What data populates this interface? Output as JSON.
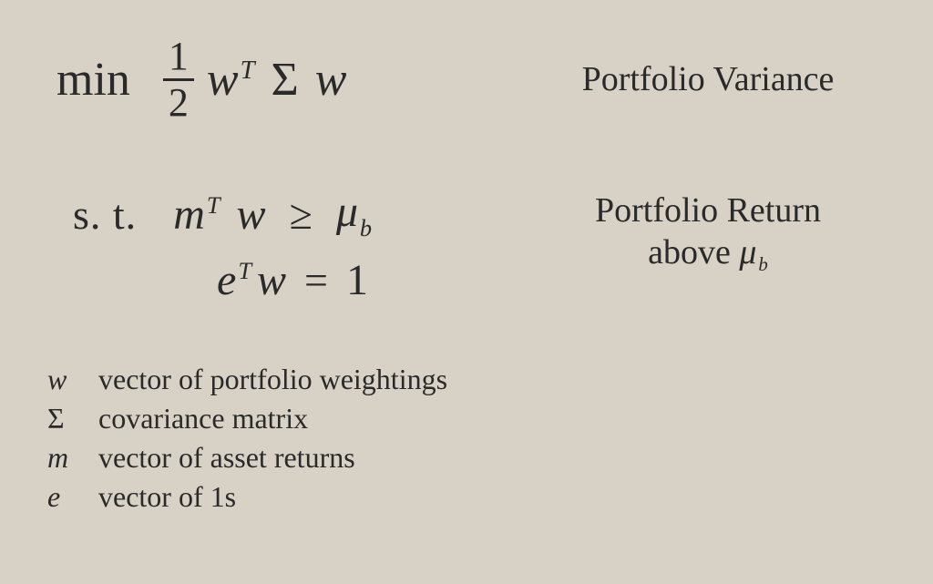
{
  "background_color": "#d8d1c5",
  "text_color": "#2a2a2a",
  "font_family": "Georgia, Times New Roman, serif",
  "objective": {
    "op": "min",
    "frac_num": "1",
    "frac_den": "2",
    "w1": "w",
    "T": "T",
    "Sigma": "Σ",
    "w2": "w",
    "label": "Portfolio Variance",
    "fontsize_math": 52,
    "fontsize_label": 38
  },
  "constraints": {
    "st": "s. t.",
    "line1": {
      "m": "m",
      "T": "T",
      "w": "w",
      "rel": "≥",
      "mu": "μ",
      "sub": "b"
    },
    "line2": {
      "e": "e",
      "T": "T",
      "w": "w",
      "rel": "=",
      "one": "1"
    },
    "label_line1": "Portfolio Return",
    "label_line2_prefix": "above ",
    "label_mu": "μ",
    "label_sub": "b",
    "fontsize_math": 48,
    "fontsize_label": 38
  },
  "legend": {
    "fontsize": 32,
    "items": [
      {
        "sym": "w",
        "italic": true,
        "text": "vector of portfolio weightings"
      },
      {
        "sym": "Σ",
        "italic": false,
        "text": "covariance matrix"
      },
      {
        "sym": "m",
        "italic": true,
        "text": "vector of asset returns"
      },
      {
        "sym": "e",
        "italic": true,
        "text": "vector of 1s"
      }
    ]
  }
}
